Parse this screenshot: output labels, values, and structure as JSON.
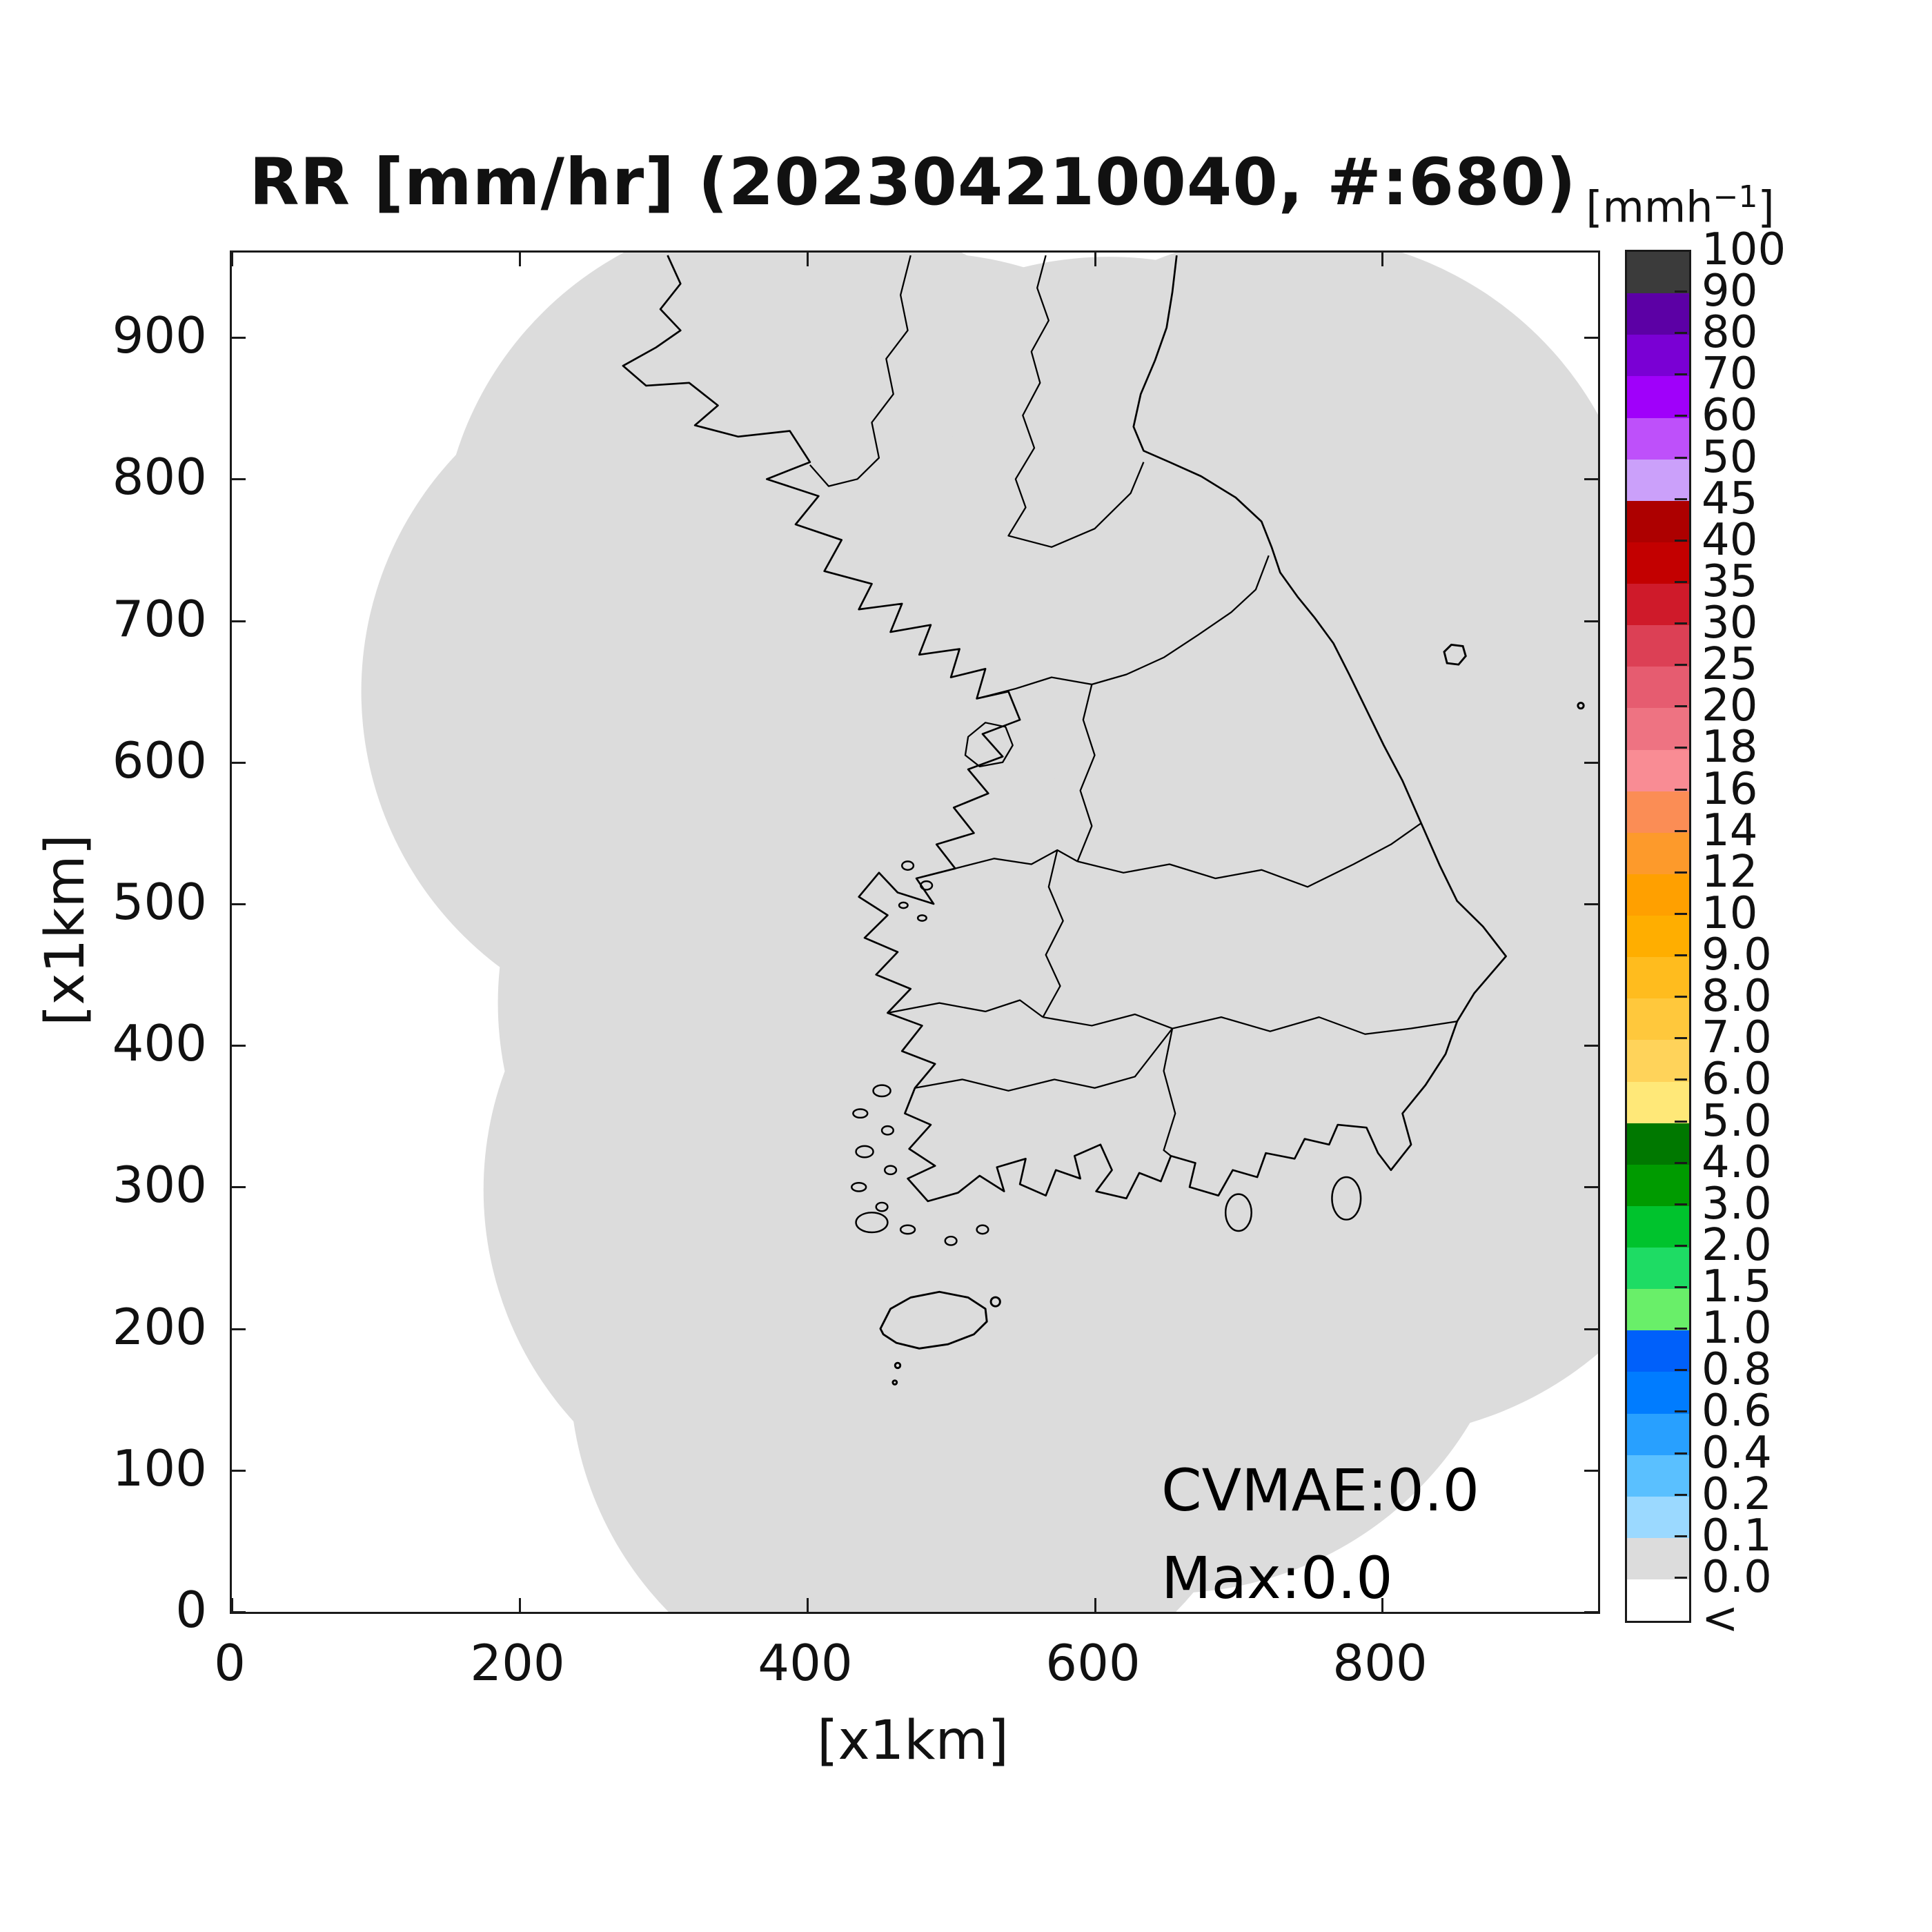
{
  "title": "RR [mm/hr] (202304210040, #:680)",
  "axes": {
    "x_label": "[x1km]",
    "y_label": "[x1km]",
    "x_ticks": [
      0,
      200,
      400,
      600,
      800
    ],
    "y_ticks": [
      0,
      100,
      200,
      300,
      400,
      500,
      600,
      700,
      800,
      900
    ],
    "x_range_km": [
      0,
      950
    ],
    "y_range_km": [
      0,
      960
    ]
  },
  "colorbar": {
    "unit_prefix": "[mmh",
    "unit_sup": "−1",
    "unit_suffix": "]",
    "tick_labels": [
      "100",
      "90",
      "80",
      "70",
      "60",
      "50",
      "45",
      "40",
      "35",
      "30",
      "25",
      "20",
      "18",
      "16",
      "14",
      "12",
      "10",
      "9.0",
      "8.0",
      "7.0",
      "6.0",
      "5.0",
      "4.0",
      "3.0",
      "2.0",
      "1.5",
      "1.0",
      "0.8",
      "0.6",
      "0.4",
      "0.2",
      "0.1",
      "0.0",
      "<"
    ],
    "segment_colors_top_to_bottom": [
      "#3B3B3B",
      "#5C00A5",
      "#7A00D4",
      "#A000FA",
      "#BE50FA",
      "#CBA0FA",
      "#AD0000",
      "#C30000",
      "#CF1A2A",
      "#DC4055",
      "#E65C70",
      "#EE7382",
      "#F98C94",
      "#FB8D55",
      "#FD9A2B",
      "#FFA000",
      "#FFAE00",
      "#FFBC1E",
      "#FFC83C",
      "#FFD35A",
      "#FFE878",
      "#007800",
      "#009B00",
      "#00C32D",
      "#1EDC64",
      "#69EF69",
      "#0060FA",
      "#007CFF",
      "#28A0FF",
      "#5AC0FF",
      "#9BD9FF",
      "#DCDCDC",
      "#FFFFFF"
    ]
  },
  "annotations": {
    "cvmae": "CVMAE:0.0",
    "max": "Max:0.0"
  },
  "style": {
    "coverage_fill": "#DCDCDC",
    "coastline_stroke": "#000000",
    "axis_color": "#1A1A1A"
  },
  "chart_data": {
    "type": "heatmap",
    "title": "RR [mm/hr] (202304210040, #:680)",
    "variable": "RR",
    "unit": "mm/hr",
    "timestamp_label": "202304210040",
    "station_count_label": "#:680",
    "xlabel": "[x1km]",
    "ylabel": "[x1km]",
    "xlim": [
      0,
      950
    ],
    "ylim": [
      0,
      960
    ],
    "x_tick_values": [
      0,
      200,
      400,
      600,
      800
    ],
    "y_tick_values": [
      0,
      100,
      200,
      300,
      400,
      500,
      600,
      700,
      800,
      900
    ],
    "grid": false,
    "legend_position": "right-colorbar",
    "colorbar_unit": "mmh-1",
    "colorbar_levels_ascending": [
      "<",
      "0.0",
      "0.1",
      "0.2",
      "0.4",
      "0.6",
      "0.8",
      "1.0",
      "1.5",
      "2.0",
      "3.0",
      "4.0",
      "5.0",
      "6.0",
      "7.0",
      "8.0",
      "9.0",
      "10",
      "12",
      "14",
      "16",
      "18",
      "20",
      "25",
      "30",
      "35",
      "40",
      "45",
      "50",
      "60",
      "70",
      "80",
      "90",
      "100"
    ],
    "colorbar_colors_ascending": [
      "#FFFFFF",
      "#DCDCDC",
      "#9BD9FF",
      "#5AC0FF",
      "#28A0FF",
      "#007CFF",
      "#0060FA",
      "#69EF69",
      "#1EDC64",
      "#00C32D",
      "#009B00",
      "#007800",
      "#FFE878",
      "#FFD35A",
      "#FFC83C",
      "#FFBC1E",
      "#FFAE00",
      "#FFA000",
      "#FD9A2B",
      "#FB8D55",
      "#F98C94",
      "#EE7382",
      "#E65C70",
      "#DC4055",
      "#CF1A2A",
      "#C30000",
      "#AD0000",
      "#CBA0FA",
      "#BE50FA",
      "#A000FA",
      "#7A00D4",
      "#5C00A5",
      "#3B3B3B"
    ],
    "field_summary": "Rain-rate field is 0.0 mm/hr everywhere inside the radar coverage union (light-gray region); no precipitation echoes.",
    "statistics": {
      "CVMAE": 0.0,
      "Max": 0.0
    }
  }
}
